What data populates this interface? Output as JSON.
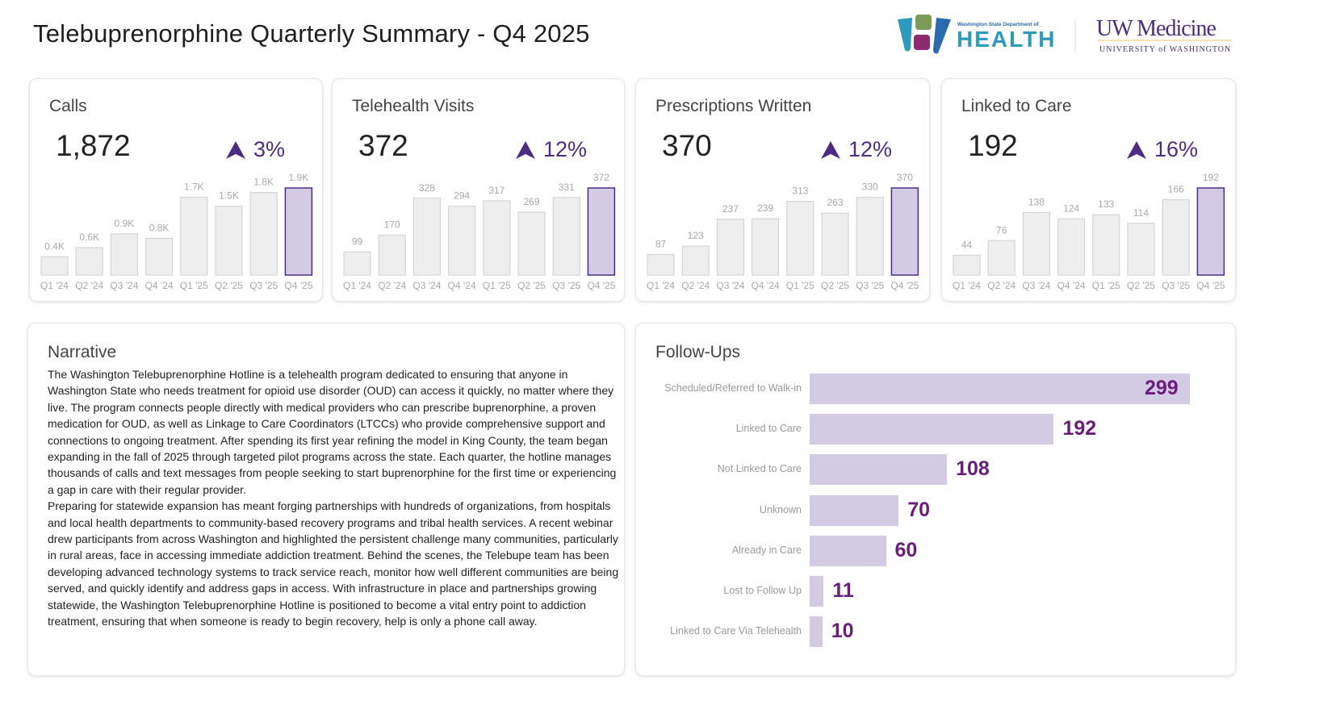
{
  "header": {
    "title": "Telebuprenorphine Quarterly Summary - Q4 2025",
    "logo_doh": {
      "small": "Washington State Department of",
      "big": "HEALTH"
    },
    "logo_uw": {
      "big": "UW Medicine",
      "small": "UNIVERSITY of WASHINGTON"
    }
  },
  "colors": {
    "accent": "#4b2e83",
    "highlight_bar": "#d3cae3",
    "bar": "#eeeeee",
    "followup_value": "#6b1c7c"
  },
  "chart_data": [
    {
      "type": "bar",
      "title": "Calls",
      "kpi": "1,872",
      "change": "3%",
      "change_icon": "arrow-up-icon",
      "categories": [
        "Q1 '24",
        "Q2 '24",
        "Q3 '24",
        "Q4 '24",
        "Q1 '25",
        "Q2 '25",
        "Q3 '25",
        "Q4 '25"
      ],
      "values": [
        0.4,
        0.6,
        0.9,
        0.8,
        1.7,
        1.5,
        1.8,
        1.9
      ],
      "value_labels": [
        "0.4K",
        "0.6K",
        "0.9K",
        "0.8K",
        "1.7K",
        "1.5K",
        "1.8K",
        "1.9K"
      ]
    },
    {
      "type": "bar",
      "title": "Telehealth Visits",
      "kpi": "372",
      "change": "12%",
      "change_icon": "arrow-up-icon",
      "categories": [
        "Q1 '24",
        "Q2 '24",
        "Q3 '24",
        "Q4 '24",
        "Q1 '25",
        "Q2 '25",
        "Q3 '25",
        "Q4 '25"
      ],
      "values": [
        99,
        170,
        328,
        294,
        317,
        269,
        331,
        372
      ],
      "value_labels": [
        "99",
        "170",
        "328",
        "294",
        "317",
        "269",
        "331",
        "372"
      ]
    },
    {
      "type": "bar",
      "title": "Prescriptions Written",
      "kpi": "370",
      "change": "12%",
      "change_icon": "arrow-up-icon",
      "categories": [
        "Q1 '24",
        "Q2 '24",
        "Q3 '24",
        "Q4 '24",
        "Q1 '25",
        "Q2 '25",
        "Q3 '25",
        "Q4 '25"
      ],
      "values": [
        87,
        123,
        237,
        239,
        313,
        263,
        330,
        370
      ],
      "value_labels": [
        "87",
        "123",
        "237",
        "239",
        "313",
        "263",
        "330",
        "370"
      ]
    },
    {
      "type": "bar",
      "title": "Linked to Care",
      "kpi": "192",
      "change": "16%",
      "change_icon": "arrow-up-icon",
      "categories": [
        "Q1 '24",
        "Q2 '24",
        "Q3 '24",
        "Q4 '24",
        "Q1 '25",
        "Q2 '25",
        "Q3 '25",
        "Q4 '25"
      ],
      "values": [
        44,
        76,
        138,
        124,
        133,
        114,
        166,
        192
      ],
      "value_labels": [
        "44",
        "76",
        "138",
        "124",
        "133",
        "114",
        "166",
        "192"
      ]
    },
    {
      "type": "bar",
      "orientation": "horizontal",
      "title": "Follow-Ups",
      "categories": [
        "Scheduled/Referred to Walk-in",
        "Linked to Care",
        "Not Linked to Care",
        "Unknown",
        "Already in Care",
        "Lost to Follow Up",
        "Linked to Care Via Telehealth"
      ],
      "values": [
        299,
        192,
        108,
        70,
        60,
        11,
        10
      ]
    }
  ],
  "narrative": {
    "title": "Narrative",
    "paragraphs": [
      "The Washington Telebuprenorphine Hotline is a telehealth program dedicated to ensuring that anyone in Washington State who needs treatment for opioid use disorder (OUD) can access it quickly, no matter where they live. The program connects people directly with medical providers who can prescribe buprenorphine, a proven medication for OUD, as well as Linkage to Care Coordinators (LTCCs) who provide comprehensive support and connections to ongoing treatment. After spending its first year refining the model in King County, the team began expanding in the fall of 2025 through targeted pilot programs across the state. Each quarter, the hotline manages thousands of calls and text messages from people seeking to start buprenorphine for the first time or experiencing a gap in care with their regular provider.",
      "Preparing for statewide expansion has meant forging partnerships with hundreds of organizations, from hospitals and local health departments to community-based recovery programs and tribal health services. A recent webinar drew participants from across Washington and highlighted the persistent challenge many communities, particularly in rural areas, face in accessing immediate addiction treatment. Behind the scenes, the Telebupe team has been developing advanced technology systems to track service reach, monitor how well different communities are being served, and quickly identify and address gaps in access. With infrastructure in place and partnerships growing statewide, the Washington Telebuprenorphine Hotline is positioned to become a vital entry point to addiction treatment, ensuring that when someone is ready to begin recovery, help is only a phone call away."
    ]
  }
}
